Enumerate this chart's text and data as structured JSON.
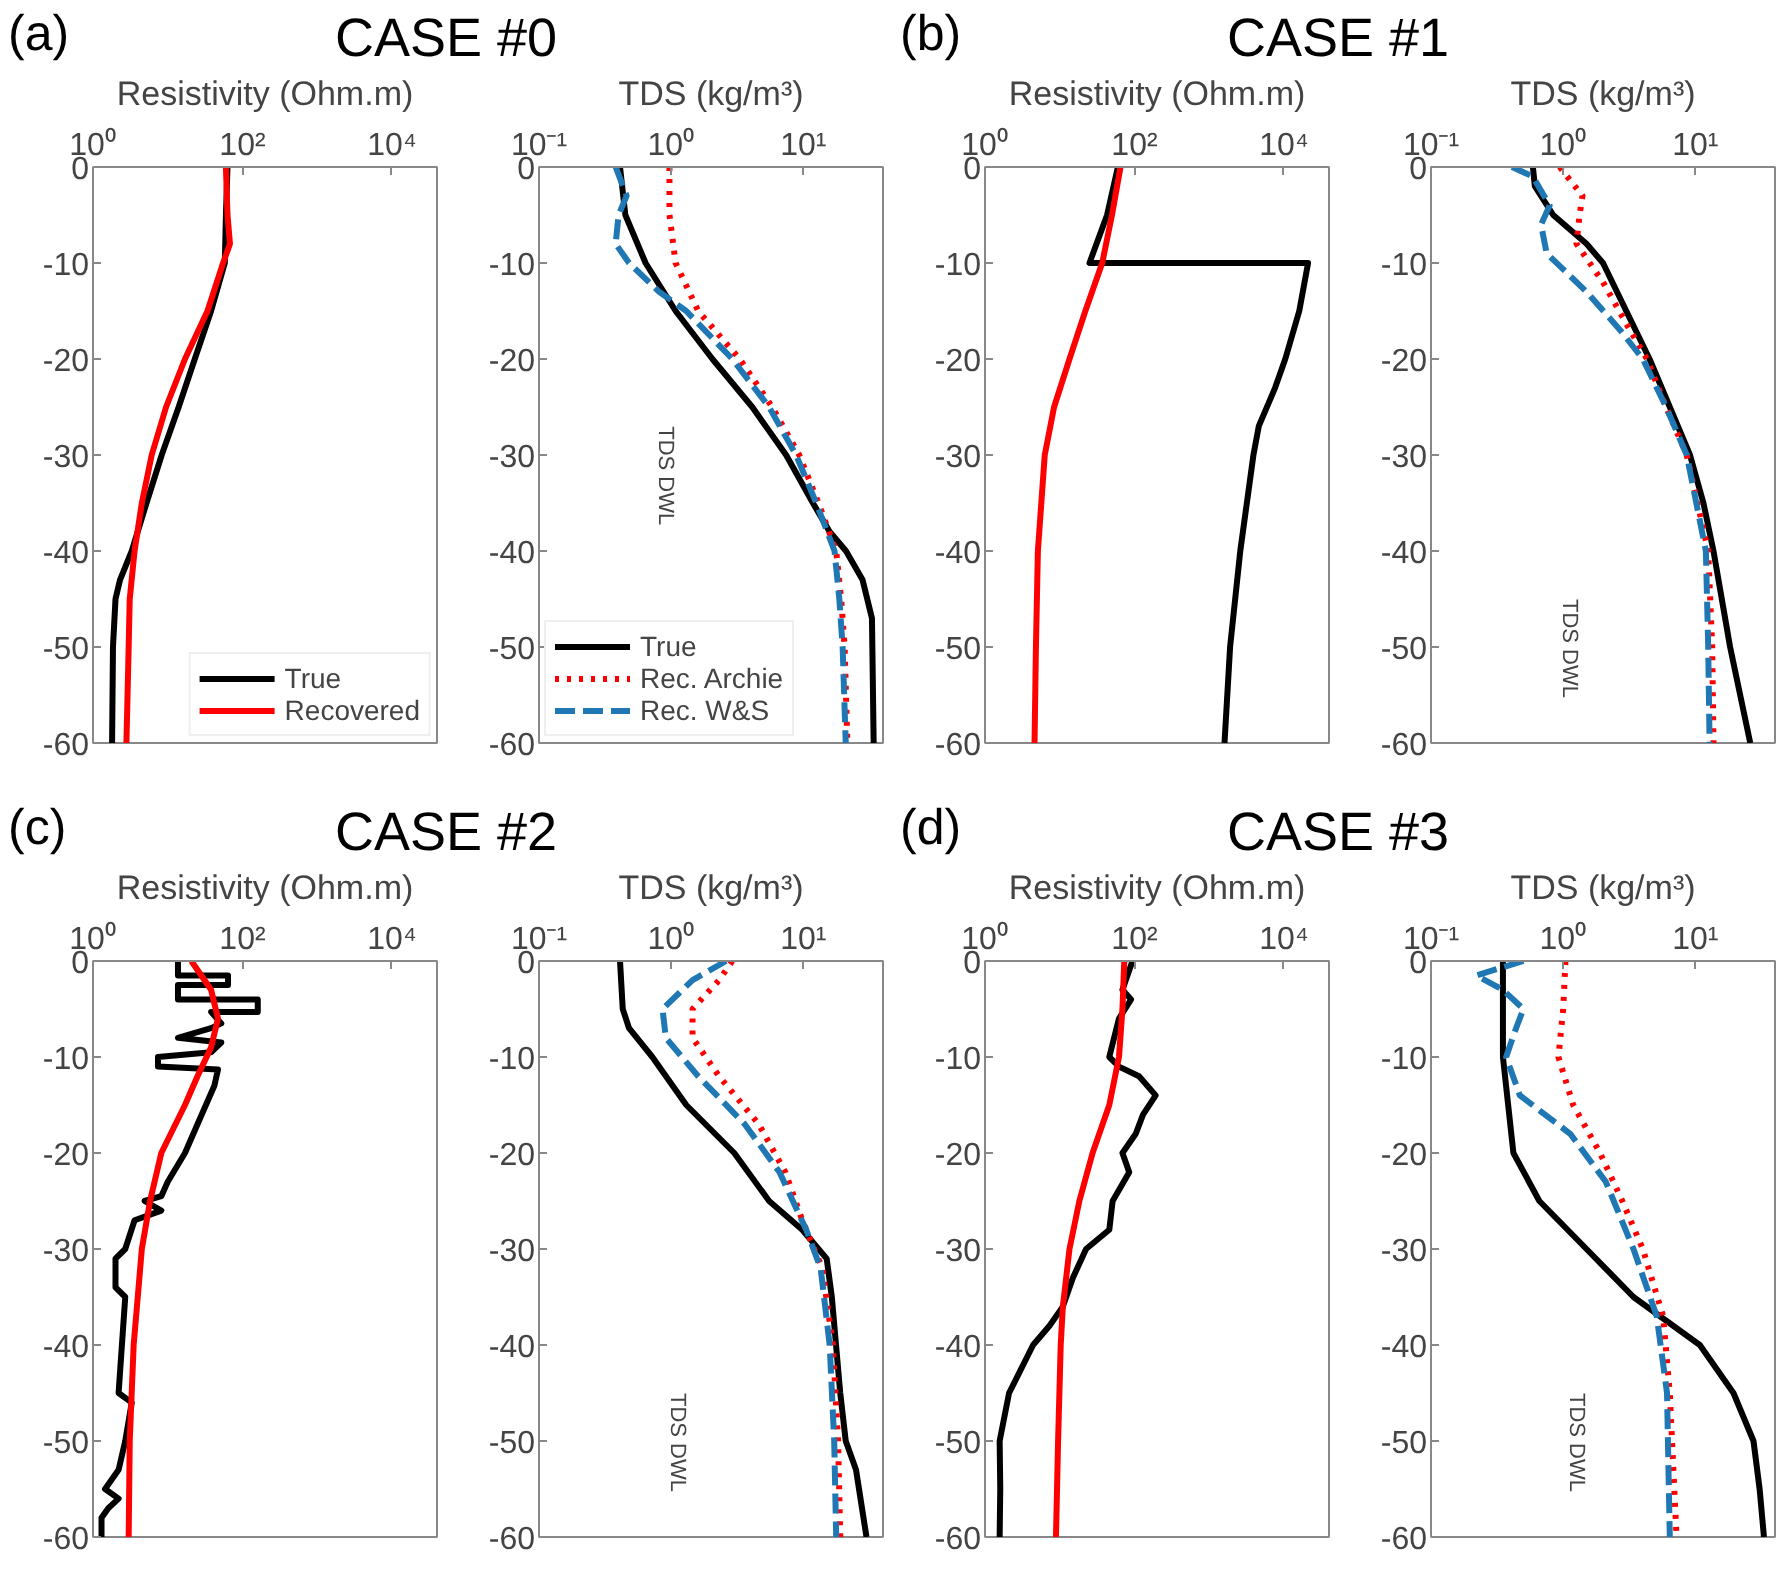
{
  "chart_data": [
    {
      "type": "line",
      "title": "CASE #0",
      "annotations": [
        "(a)"
      ],
      "xlabel": "Resistivity (Ohm.m)",
      "log": "x",
      "grid": false,
      "legend": "bottom right",
      "xlim": [
        1,
        40000
      ],
      "xticks": [
        {
          "value": 1,
          "label": "10⁰"
        },
        {
          "value": 100,
          "label": "10²"
        },
        {
          "value": 10000,
          "label": "10⁴"
        }
      ],
      "ylim": [
        -60,
        0
      ],
      "yticks": [
        0,
        -10,
        -20,
        -30,
        -40,
        -50,
        -60
      ],
      "series": [
        {
          "name": "True",
          "color": "#000000",
          "line_style": "solid",
          "x": [
            63,
            60,
            58,
            38,
            23,
            14,
            8.3,
            5.2,
            3.3,
            2.3,
            2.0,
            1.85,
            1.8
          ],
          "values": [
            0,
            -5,
            -10,
            -15,
            -20,
            -25,
            -30,
            -35,
            -40,
            -43,
            -45,
            -50,
            -60
          ]
        },
        {
          "name": "Recovered",
          "color": "#ff0000",
          "line_style": "solid",
          "x": [
            60,
            63,
            68,
            55,
            34,
            17,
            9.5,
            6.1,
            4.5,
            3.6,
            3.1,
            3.0,
            2.8
          ],
          "values": [
            0,
            -5,
            -8,
            -10,
            -15,
            -20,
            -25,
            -30,
            -35,
            -40,
            -45,
            -50,
            -60
          ]
        }
      ]
    },
    {
      "type": "line",
      "annotations": [
        "TDS DWL"
      ],
      "xlabel": "TDS (kg/m³)",
      "log": "x",
      "grid": false,
      "legend": "bottom left",
      "xlim": [
        0.1,
        40
      ],
      "xticks": [
        {
          "value": 0.1,
          "label": "10⁻¹"
        },
        {
          "value": 1,
          "label": "10⁰"
        },
        {
          "value": 10,
          "label": "10¹"
        }
      ],
      "ylim": [
        -60,
        0
      ],
      "yticks": [
        0,
        -10,
        -20,
        -30,
        -40,
        -50,
        -60
      ],
      "series": [
        {
          "name": "True",
          "color": "#000000",
          "line_style": "solid",
          "x": [
            0.41,
            0.45,
            0.64,
            1.08,
            2.05,
            4.1,
            7.4,
            11.8,
            15.8,
            21,
            28,
            33,
            34
          ],
          "values": [
            0,
            -5,
            -10,
            -15,
            -20,
            -25,
            -30,
            -35,
            -38,
            -40,
            -43,
            -47,
            -60
          ]
        },
        {
          "name": "Rec. Archie",
          "color": "#ff0000",
          "line_style": "dotted",
          "x": [
            0.97,
            0.97,
            1.08,
            1.6,
            3.3,
            5.8,
            9.3,
            13,
            17.7,
            19.3,
            20.5,
            21.5
          ],
          "values": [
            0,
            -5,
            -10,
            -15,
            -20,
            -25,
            -30,
            -35,
            -40,
            -45,
            -50,
            -60
          ]
        },
        {
          "name": "Rec. W&S",
          "color": "#1f77b4",
          "line_style": "dashed",
          "x": [
            0.38,
            0.46,
            0.4,
            0.38,
            0.48,
            0.81,
            1.3,
            2.9,
            5.5,
            8.8,
            12.5,
            17.2,
            18.7,
            19.8,
            20.9
          ],
          "values": [
            0,
            -3,
            -5,
            -8,
            -10,
            -13,
            -15,
            -20,
            -25,
            -30,
            -35,
            -40,
            -45,
            -50,
            -60
          ]
        }
      ]
    },
    {
      "type": "line",
      "title": "CASE #1",
      "annotations": [
        "(b)"
      ],
      "xlabel": "Resistivity (Ohm.m)",
      "log": "x",
      "grid": false,
      "xlim": [
        1,
        40000
      ],
      "xticks": [
        {
          "value": 1,
          "label": "10⁰"
        },
        {
          "value": 100,
          "label": "10²"
        },
        {
          "value": 10000,
          "label": "10⁴"
        }
      ],
      "ylim": [
        -60,
        0
      ],
      "yticks": [
        0,
        -10,
        -20,
        -30,
        -40,
        -50,
        -60
      ],
      "series": [
        {
          "color": "#000000",
          "line_style": "solid",
          "x": [
            60,
            43,
            25,
            21000,
            16000,
            10400,
            7600,
            4600,
            3900,
            2600,
            1900,
            1600
          ],
          "values": [
            0,
            -5,
            -10,
            -10,
            -15,
            -20,
            -23,
            -27,
            -30,
            -40,
            -50,
            -60
          ]
        },
        {
          "color": "#ff0000",
          "line_style": "solid",
          "x": [
            65,
            50,
            37,
            22,
            13.5,
            8.4,
            6.3,
            5.1,
            4.8,
            4.6
          ],
          "values": [
            0,
            -5,
            -10,
            -15,
            -20,
            -25,
            -30,
            -40,
            -50,
            -60
          ]
        }
      ]
    },
    {
      "type": "line",
      "annotations": [
        "TDS DWL"
      ],
      "xlabel": "TDS (kg/m³)",
      "log": "x",
      "grid": false,
      "xlim": [
        0.1,
        40
      ],
      "xticks": [
        {
          "value": 0.1,
          "label": "10⁻¹"
        },
        {
          "value": 1,
          "label": "10⁰"
        },
        {
          "value": 10,
          "label": "10¹"
        }
      ],
      "ylim": [
        -60,
        0
      ],
      "yticks": [
        0,
        -10,
        -20,
        -30,
        -40,
        -50,
        -60
      ],
      "series": [
        {
          "color": "#000000",
          "line_style": "solid",
          "x": [
            0.59,
            0.61,
            0.84,
            1.5,
            2.0,
            3.0,
            4.5,
            6.4,
            9.1,
            11.5,
            13.7,
            18.3,
            26
          ],
          "values": [
            0,
            -2,
            -5,
            -8,
            -10,
            -15,
            -20,
            -25,
            -30,
            -35,
            -40,
            -50,
            -60
          ]
        },
        {
          "color": "#ff0000",
          "line_style": "dotted",
          "x": [
            0.94,
            1.4,
            1.33,
            1.26,
            2.0,
            3.2,
            4.3,
            6.0,
            8.6,
            12.5,
            13.4,
            13.7
          ],
          "values": [
            0,
            -3,
            -5,
            -8,
            -12,
            -17,
            -20,
            -25,
            -30,
            -40,
            -50,
            -60
          ]
        },
        {
          "color": "#1f77b4",
          "line_style": "dashed",
          "x": [
            0.41,
            0.59,
            0.79,
            0.68,
            0.75,
            1.5,
            2.7,
            4.0,
            6.0,
            8.6,
            12,
            12.5,
            12.8
          ],
          "values": [
            0,
            -1,
            -4,
            -6,
            -9,
            -13,
            -17,
            -20,
            -25,
            -30,
            -40,
            -50,
            -60
          ]
        }
      ]
    },
    {
      "type": "line",
      "title": "CASE #2",
      "annotations": [
        "(c)"
      ],
      "xlabel": "Resistivity (Ohm.m)",
      "log": "x",
      "grid": false,
      "xlim": [
        1,
        40000
      ],
      "xticks": [
        {
          "value": 1,
          "label": "10⁰"
        },
        {
          "value": 100,
          "label": "10²"
        },
        {
          "value": 10000,
          "label": "10⁴"
        }
      ],
      "ylim": [
        -60,
        0
      ],
      "yticks": [
        0,
        -10,
        -20,
        -30,
        -40,
        -50,
        -60
      ],
      "series": [
        {
          "color": "#000000",
          "line_style": "solid",
          "x": [
            13.7,
            13.7,
            64,
            64,
            13.7,
            13.7,
            160,
            160,
            38,
            52,
            38,
            13.7,
            52,
            38,
            7.4,
            7.4,
            47,
            42,
            25,
            17,
            10,
            8.2,
            4.9,
            8.2,
            3.6,
            2.7,
            2.0,
            2.0,
            2.7,
            2.2,
            3.3,
            2.7,
            2.2,
            1.45,
            2.2,
            1.6,
            1.3,
            1.3
          ],
          "values": [
            0,
            -1.5,
            -1.5,
            -2.5,
            -2.5,
            -4,
            -4,
            -5.3,
            -5.3,
            -6.5,
            -7,
            -8,
            -8.5,
            -9.5,
            -10,
            -11,
            -11.3,
            -13,
            -17,
            -20,
            -23,
            -24.5,
            -25,
            -26,
            -27,
            -30,
            -31,
            -34,
            -35,
            -45,
            -46,
            -50,
            -53,
            -55,
            -56,
            -57,
            -58,
            -60
          ]
        },
        {
          "color": "#ff0000",
          "line_style": "solid",
          "x": [
            20.7,
            38,
            47,
            38,
            25,
            17,
            8.2,
            5.8,
            4.5,
            3.5,
            3.1,
            3.0
          ],
          "values": [
            0,
            -3,
            -6,
            -9,
            -12,
            -15,
            -20,
            -25,
            -30,
            -40,
            -50,
            -60
          ]
        }
      ]
    },
    {
      "type": "line",
      "annotations": [
        "TDS DWL"
      ],
      "xlabel": "TDS (kg/m³)",
      "log": "x",
      "grid": false,
      "xlim": [
        0.1,
        40
      ],
      "xticks": [
        {
          "value": 0.1,
          "label": "10⁻¹"
        },
        {
          "value": 1,
          "label": "10⁰"
        },
        {
          "value": 10,
          "label": "10¹"
        }
      ],
      "ylim": [
        -60,
        0
      ],
      "yticks": [
        0,
        -10,
        -20,
        -30,
        -40,
        -50,
        -60
      ],
      "series": [
        {
          "color": "#000000",
          "line_style": "solid",
          "x": [
            0.41,
            0.43,
            0.48,
            0.72,
            1.3,
            3.0,
            5.5,
            9.8,
            15,
            16.4,
            19,
            20.9,
            25,
            30
          ],
          "values": [
            0,
            -5,
            -7,
            -10,
            -15,
            -20,
            -25,
            -28,
            -31,
            -35,
            -45,
            -50,
            -53,
            -60
          ]
        },
        {
          "color": "#ff0000",
          "line_style": "dotted",
          "x": [
            2.9,
            2.3,
            1.45,
            1.45,
            2.3,
            4.6,
            7.3,
            9.8,
            13.9,
            16.7,
            18.3,
            19
          ],
          "values": [
            0,
            -2,
            -5,
            -8,
            -12,
            -17,
            -22,
            -27,
            -32,
            -40,
            -50,
            -60
          ]
        },
        {
          "color": "#1f77b4",
          "line_style": "dashed",
          "x": [
            2.6,
            1.45,
            0.86,
            0.91,
            1.6,
            3.6,
            6.6,
            10.5,
            13.5,
            15.8,
            17.1,
            17.7
          ],
          "values": [
            0,
            -2,
            -5,
            -8,
            -12,
            -17,
            -22,
            -28,
            -32,
            -40,
            -50,
            -60
          ]
        }
      ]
    },
    {
      "type": "line",
      "title": "CASE #3",
      "annotations": [
        "(d)"
      ],
      "xlabel": "Resistivity (Ohm.m)",
      "log": "x",
      "grid": false,
      "xlim": [
        1,
        40000
      ],
      "xticks": [
        {
          "value": 1,
          "label": "10⁰"
        },
        {
          "value": 100,
          "label": "10²"
        },
        {
          "value": 10000,
          "label": "10⁴"
        }
      ],
      "ylim": [
        -60,
        0
      ],
      "yticks": [
        0,
        -10,
        -20,
        -30,
        -40,
        -50,
        -60
      ],
      "series": [
        {
          "color": "#000000",
          "line_style": "solid",
          "x": [
            94,
            69,
            90,
            62,
            46,
            62,
            115,
            192,
            130,
            104,
            69,
            85,
            51,
            46,
            22.5,
            15,
            11,
            7.3,
            4.4,
            2.1,
            1.57,
            1.6,
            1.57
          ],
          "values": [
            0,
            -3,
            -4,
            -6,
            -10,
            -11,
            -12,
            -14,
            -16,
            -18,
            -20,
            -22,
            -25,
            -28,
            -30,
            -33,
            -36,
            -38,
            -40,
            -45,
            -50,
            -55,
            -60
          ]
        },
        {
          "color": "#ff0000",
          "line_style": "solid",
          "x": [
            73,
            69,
            62,
            46,
            27.5,
            18.3,
            13.5,
            11,
            10.3,
            9.5,
            8.9
          ],
          "values": [
            0,
            -5,
            -10,
            -15,
            -20,
            -25,
            -30,
            -36,
            -40,
            -50,
            -60
          ]
        }
      ]
    },
    {
      "type": "line",
      "annotations": [
        "TDS DWL"
      ],
      "xlabel": "TDS (kg/m³)",
      "log": "x",
      "grid": false,
      "xlim": [
        0.1,
        40
      ],
      "xticks": [
        {
          "value": 0.1,
          "label": "10⁻¹"
        },
        {
          "value": 1,
          "label": "10⁰"
        },
        {
          "value": 10,
          "label": "10¹"
        }
      ],
      "ylim": [
        -60,
        0
      ],
      "yticks": [
        0,
        -10,
        -20,
        -30,
        -40,
        -50,
        -60
      ],
      "series": [
        {
          "color": "#000000",
          "line_style": "solid",
          "x": [
            0.35,
            0.35,
            0.42,
            0.66,
            1.5,
            3.4,
            5.4,
            10.8,
            19.4,
            27.5,
            30.6,
            33
          ],
          "values": [
            0,
            -10,
            -20,
            -25,
            -30,
            -35,
            -37,
            -40,
            -45,
            -50,
            -55,
            -60
          ]
        },
        {
          "color": "#ff0000",
          "line_style": "dotted",
          "x": [
            1.04,
            1.0,
            0.92,
            1.19,
            1.9,
            2.8,
            4.0,
            5.7,
            6.4,
            7.2
          ],
          "values": [
            0,
            -5,
            -10,
            -15,
            -20,
            -25,
            -30,
            -37,
            -45,
            -60
          ]
        },
        {
          "color": "#1f77b4",
          "line_style": "dashed",
          "x": [
            0.5,
            0.22,
            0.35,
            0.5,
            0.44,
            0.37,
            0.47,
            1.13,
            2.1,
            3.4,
            5.1,
            6.1,
            6.4
          ],
          "values": [
            0,
            -1.5,
            -3,
            -5,
            -7,
            -10,
            -14,
            -18,
            -23,
            -30,
            -37,
            -45,
            -60
          ]
        }
      ]
    }
  ]
}
